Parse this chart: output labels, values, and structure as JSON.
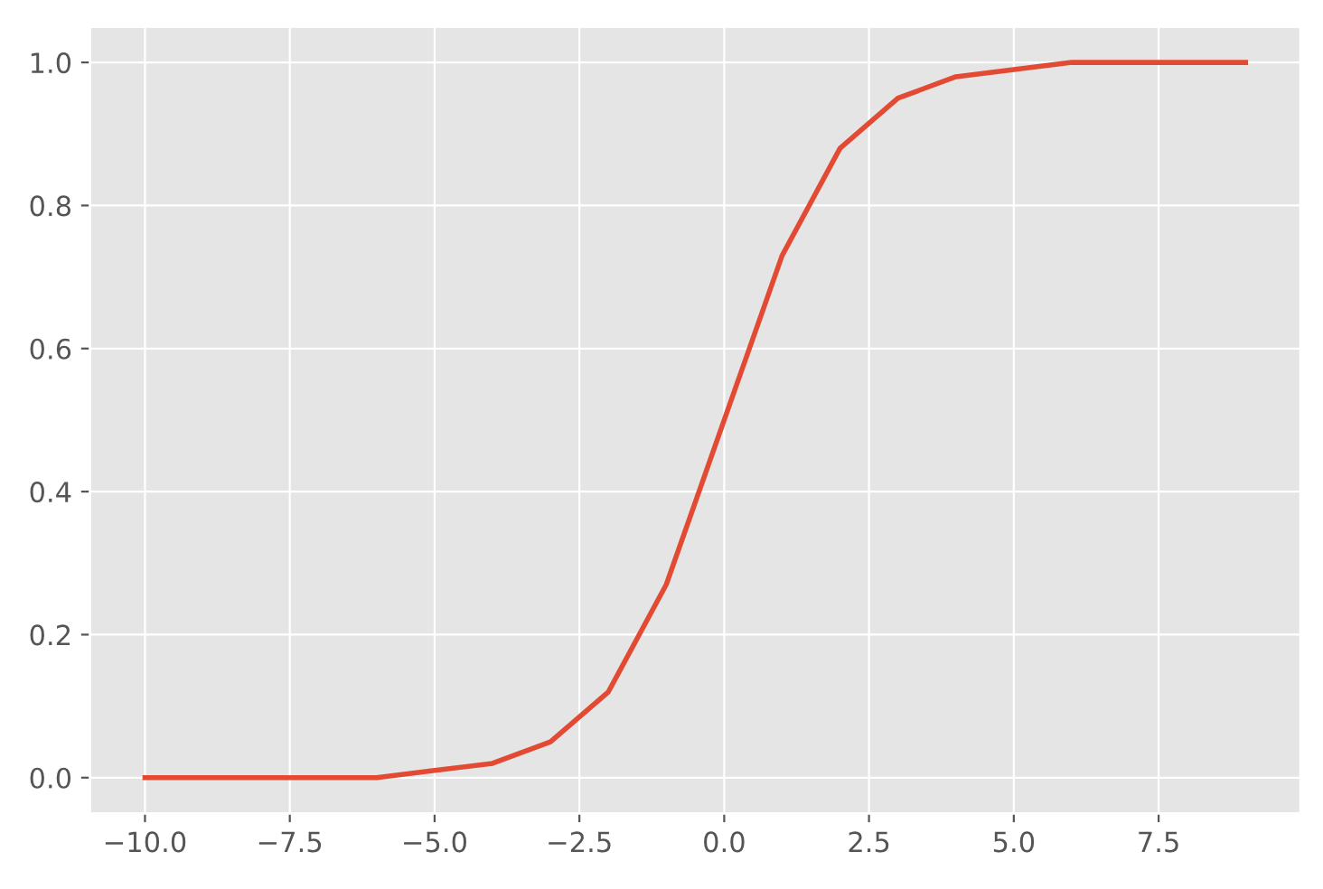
{
  "chart_data": {
    "type": "line",
    "x": [
      -10,
      -9,
      -8,
      -7,
      -6,
      -5,
      -4,
      -3,
      -2,
      -1,
      0,
      1,
      2,
      3,
      4,
      5,
      6,
      7,
      8,
      9
    ],
    "series": [
      {
        "color": "#e24a33",
        "values": [
          0.0,
          0.0,
          0.0,
          0.0,
          0.0,
          0.01,
          0.02,
          0.05,
          0.12,
          0.27,
          0.5,
          0.73,
          0.88,
          0.95,
          0.98,
          0.99,
          1.0,
          1.0,
          1.0,
          1.0
        ]
      }
    ],
    "xlim": [
      -10.95,
      9.95
    ],
    "ylim": [
      -0.05,
      1.05
    ],
    "xticks": [
      {
        "value": -10,
        "label": "−10.0"
      },
      {
        "value": -7.5,
        "label": "−7.5"
      },
      {
        "value": -5,
        "label": "−5.0"
      },
      {
        "value": -2.5,
        "label": "−2.5"
      },
      {
        "value": 0,
        "label": "0.0"
      },
      {
        "value": 2.5,
        "label": "2.5"
      },
      {
        "value": 5,
        "label": "5.0"
      },
      {
        "value": 7.5,
        "label": "7.5"
      }
    ],
    "yticks": [
      {
        "value": 0,
        "label": "0.0"
      },
      {
        "value": 0.2,
        "label": "0.2"
      },
      {
        "value": 0.4,
        "label": "0.4"
      },
      {
        "value": 0.6,
        "label": "0.6"
      },
      {
        "value": 0.8,
        "label": "0.8"
      },
      {
        "value": 1.0,
        "label": "1.0"
      }
    ],
    "grid": true,
    "marker": "none",
    "line_style": "solid"
  }
}
